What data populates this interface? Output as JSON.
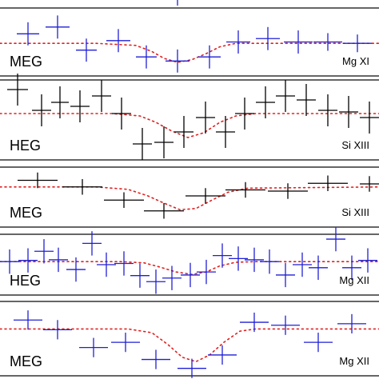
{
  "colors": {
    "blue": "#1f1fd6",
    "black": "#000000",
    "model": "#e02020",
    "frame": "#000000"
  },
  "chart_data": [
    {
      "type": "line",
      "instrument": "MEG",
      "ion": "Mg XI",
      "color": "blue",
      "xlim": [
        0,
        474
      ],
      "ylim": [
        0,
        1
      ],
      "points": [
        {
          "x": 35,
          "xerr": 14,
          "y": 0.62,
          "yerr": 0.17
        },
        {
          "x": 72,
          "xerr": 15,
          "y": 0.72,
          "yerr": 0.17
        },
        {
          "x": 108,
          "xerr": 13,
          "y": 0.38,
          "yerr": 0.17
        },
        {
          "x": 148,
          "xerr": 15,
          "y": 0.52,
          "yerr": 0.17
        },
        {
          "x": 183,
          "xerr": 13,
          "y": 0.28,
          "yerr": 0.17
        },
        {
          "x": 222,
          "xerr": 15,
          "y": 0.22,
          "yerr": 0.17
        },
        {
          "x": 262,
          "xerr": 14,
          "y": 0.28,
          "yerr": 0.17
        },
        {
          "x": 298,
          "xerr": 15,
          "y": 0.5,
          "yerr": 0.17
        },
        {
          "x": 335,
          "xerr": 15,
          "y": 0.55,
          "yerr": 0.17
        },
        {
          "x": 373,
          "xerr": 18,
          "y": 0.5,
          "yerr": 0.17
        },
        {
          "x": 410,
          "xerr": 18,
          "y": 0.5,
          "yerr": 0.13
        },
        {
          "x": 447,
          "xerr": 18,
          "y": 0.48,
          "yerr": 0.13
        }
      ],
      "model": [
        [
          0,
          0.48
        ],
        [
          120,
          0.48
        ],
        [
          170,
          0.45
        ],
        [
          190,
          0.36
        ],
        [
          205,
          0.26
        ],
        [
          222,
          0.2
        ],
        [
          240,
          0.24
        ],
        [
          258,
          0.33
        ],
        [
          275,
          0.43
        ],
        [
          295,
          0.48
        ],
        [
          474,
          0.48
        ]
      ]
    },
    {
      "type": "line",
      "instrument": "HEG",
      "ion": "Si XIII",
      "color": "black",
      "xlim": [
        0,
        474
      ],
      "ylim": [
        0,
        1
      ],
      "points": [
        {
          "x": 22,
          "xerr": 13,
          "y": 0.88,
          "yerr": 0.2
        },
        {
          "x": 52,
          "xerr": 12,
          "y": 0.62,
          "yerr": 0.2
        },
        {
          "x": 75,
          "xerr": 11,
          "y": 0.72,
          "yerr": 0.2
        },
        {
          "x": 100,
          "xerr": 12,
          "y": 0.67,
          "yerr": 0.2
        },
        {
          "x": 127,
          "xerr": 12,
          "y": 0.8,
          "yerr": 0.2
        },
        {
          "x": 152,
          "xerr": 12,
          "y": 0.58,
          "yerr": 0.2
        },
        {
          "x": 178,
          "xerr": 12,
          "y": 0.2,
          "yerr": 0.2
        },
        {
          "x": 205,
          "xerr": 12,
          "y": 0.22,
          "yerr": 0.2
        },
        {
          "x": 230,
          "xerr": 12,
          "y": 0.35,
          "yerr": 0.2
        },
        {
          "x": 257,
          "xerr": 12,
          "y": 0.53,
          "yerr": 0.2
        },
        {
          "x": 282,
          "xerr": 12,
          "y": 0.35,
          "yerr": 0.2
        },
        {
          "x": 306,
          "xerr": 12,
          "y": 0.58,
          "yerr": 0.2
        },
        {
          "x": 332,
          "xerr": 12,
          "y": 0.72,
          "yerr": 0.2
        },
        {
          "x": 357,
          "xerr": 12,
          "y": 0.8,
          "yerr": 0.2
        },
        {
          "x": 383,
          "xerr": 12,
          "y": 0.75,
          "yerr": 0.2
        },
        {
          "x": 410,
          "xerr": 12,
          "y": 0.62,
          "yerr": 0.2
        },
        {
          "x": 436,
          "xerr": 12,
          "y": 0.6,
          "yerr": 0.2
        },
        {
          "x": 462,
          "xerr": 12,
          "y": 0.53,
          "yerr": 0.2
        }
      ],
      "model": [
        [
          0,
          0.58
        ],
        [
          140,
          0.58
        ],
        [
          175,
          0.55
        ],
        [
          195,
          0.47
        ],
        [
          215,
          0.36
        ],
        [
          235,
          0.28
        ],
        [
          255,
          0.34
        ],
        [
          275,
          0.47
        ],
        [
          295,
          0.55
        ],
        [
          320,
          0.58
        ],
        [
          474,
          0.58
        ]
      ]
    },
    {
      "type": "line",
      "instrument": "MEG",
      "ion": "Si XIII",
      "color": "black",
      "xlim": [
        0,
        474
      ],
      "ylim": [
        0,
        1
      ],
      "points": [
        {
          "x": 47,
          "xerr": 25,
          "y": 0.78,
          "yerr": 0.13
        },
        {
          "x": 103,
          "xerr": 25,
          "y": 0.67,
          "yerr": 0.13
        },
        {
          "x": 155,
          "xerr": 25,
          "y": 0.45,
          "yerr": 0.13
        },
        {
          "x": 205,
          "xerr": 25,
          "y": 0.27,
          "yerr": 0.13
        },
        {
          "x": 257,
          "xerr": 25,
          "y": 0.52,
          "yerr": 0.13
        },
        {
          "x": 307,
          "xerr": 25,
          "y": 0.62,
          "yerr": 0.13
        },
        {
          "x": 360,
          "xerr": 25,
          "y": 0.6,
          "yerr": 0.13
        },
        {
          "x": 410,
          "xerr": 25,
          "y": 0.73,
          "yerr": 0.13
        },
        {
          "x": 462,
          "xerr": 12,
          "y": 0.72,
          "yerr": 0.13
        }
      ],
      "model": [
        [
          0,
          0.67
        ],
        [
          120,
          0.67
        ],
        [
          160,
          0.63
        ],
        [
          185,
          0.52
        ],
        [
          205,
          0.4
        ],
        [
          225,
          0.29
        ],
        [
          245,
          0.31
        ],
        [
          265,
          0.45
        ],
        [
          285,
          0.58
        ],
        [
          310,
          0.65
        ],
        [
          474,
          0.67
        ]
      ]
    },
    {
      "type": "line",
      "instrument": "HEG",
      "ion": "Mg XII",
      "color": "blue",
      "xlim": [
        0,
        474
      ],
      "ylim": [
        0,
        1
      ],
      "points": [
        {
          "x": 12,
          "xerr": 12,
          "y": 0.55,
          "yerr": 0.2
        },
        {
          "x": 35,
          "xerr": 12,
          "y": 0.57,
          "yerr": 0.2
        },
        {
          "x": 55,
          "xerr": 12,
          "y": 0.72,
          "yerr": 0.2
        },
        {
          "x": 73,
          "xerr": 12,
          "y": 0.58,
          "yerr": 0.2
        },
        {
          "x": 95,
          "xerr": 12,
          "y": 0.42,
          "yerr": 0.2
        },
        {
          "x": 115,
          "xerr": 12,
          "y": 0.85,
          "yerr": 0.2
        },
        {
          "x": 133,
          "xerr": 12,
          "y": 0.5,
          "yerr": 0.2
        },
        {
          "x": 155,
          "xerr": 12,
          "y": 0.52,
          "yerr": 0.2
        },
        {
          "x": 175,
          "xerr": 12,
          "y": 0.32,
          "yerr": 0.2
        },
        {
          "x": 195,
          "xerr": 12,
          "y": 0.22,
          "yerr": 0.2
        },
        {
          "x": 215,
          "xerr": 12,
          "y": 0.28,
          "yerr": 0.2
        },
        {
          "x": 238,
          "xerr": 12,
          "y": 0.33,
          "yerr": 0.2
        },
        {
          "x": 258,
          "xerr": 12,
          "y": 0.38,
          "yerr": 0.2
        },
        {
          "x": 278,
          "xerr": 12,
          "y": 0.65,
          "yerr": 0.2
        },
        {
          "x": 298,
          "xerr": 12,
          "y": 0.6,
          "yerr": 0.2
        },
        {
          "x": 318,
          "xerr": 12,
          "y": 0.58,
          "yerr": 0.2
        },
        {
          "x": 337,
          "xerr": 12,
          "y": 0.55,
          "yerr": 0.2
        },
        {
          "x": 357,
          "xerr": 12,
          "y": 0.33,
          "yerr": 0.2
        },
        {
          "x": 378,
          "xerr": 12,
          "y": 0.5,
          "yerr": 0.2
        },
        {
          "x": 398,
          "xerr": 12,
          "y": 0.45,
          "yerr": 0.2
        },
        {
          "x": 420,
          "xerr": 12,
          "y": 0.92,
          "yerr": 0.2
        },
        {
          "x": 440,
          "xerr": 12,
          "y": 0.45,
          "yerr": 0.2
        },
        {
          "x": 460,
          "xerr": 12,
          "y": 0.57,
          "yerr": 0.2
        }
      ],
      "model": [
        [
          0,
          0.55
        ],
        [
          150,
          0.55
        ],
        [
          180,
          0.53
        ],
        [
          200,
          0.46
        ],
        [
          220,
          0.38
        ],
        [
          240,
          0.34
        ],
        [
          258,
          0.38
        ],
        [
          275,
          0.48
        ],
        [
          295,
          0.54
        ],
        [
          320,
          0.55
        ],
        [
          474,
          0.55
        ]
      ]
    },
    {
      "type": "line",
      "instrument": "MEG",
      "ion": "Mg XII",
      "color": "blue",
      "xlim": [
        0,
        474
      ],
      "ylim": [
        0,
        1
      ],
      "points": [
        {
          "x": 35,
          "xerr": 18,
          "y": 0.75,
          "yerr": 0.13
        },
        {
          "x": 72,
          "xerr": 18,
          "y": 0.62,
          "yerr": 0.13
        },
        {
          "x": 117,
          "xerr": 18,
          "y": 0.38,
          "yerr": 0.13
        },
        {
          "x": 157,
          "xerr": 18,
          "y": 0.45,
          "yerr": 0.13
        },
        {
          "x": 195,
          "xerr": 18,
          "y": 0.22,
          "yerr": 0.13
        },
        {
          "x": 240,
          "xerr": 18,
          "y": 0.1,
          "yerr": 0.13
        },
        {
          "x": 278,
          "xerr": 18,
          "y": 0.28,
          "yerr": 0.13
        },
        {
          "x": 318,
          "xerr": 18,
          "y": 0.72,
          "yerr": 0.13
        },
        {
          "x": 357,
          "xerr": 18,
          "y": 0.68,
          "yerr": 0.13
        },
        {
          "x": 398,
          "xerr": 18,
          "y": 0.45,
          "yerr": 0.13
        },
        {
          "x": 440,
          "xerr": 18,
          "y": 0.7,
          "yerr": 0.13
        }
      ],
      "model": [
        [
          0,
          0.63
        ],
        [
          160,
          0.63
        ],
        [
          190,
          0.58
        ],
        [
          210,
          0.42
        ],
        [
          228,
          0.25
        ],
        [
          245,
          0.19
        ],
        [
          262,
          0.28
        ],
        [
          280,
          0.45
        ],
        [
          300,
          0.6
        ],
        [
          320,
          0.63
        ],
        [
          474,
          0.63
        ]
      ]
    }
  ]
}
